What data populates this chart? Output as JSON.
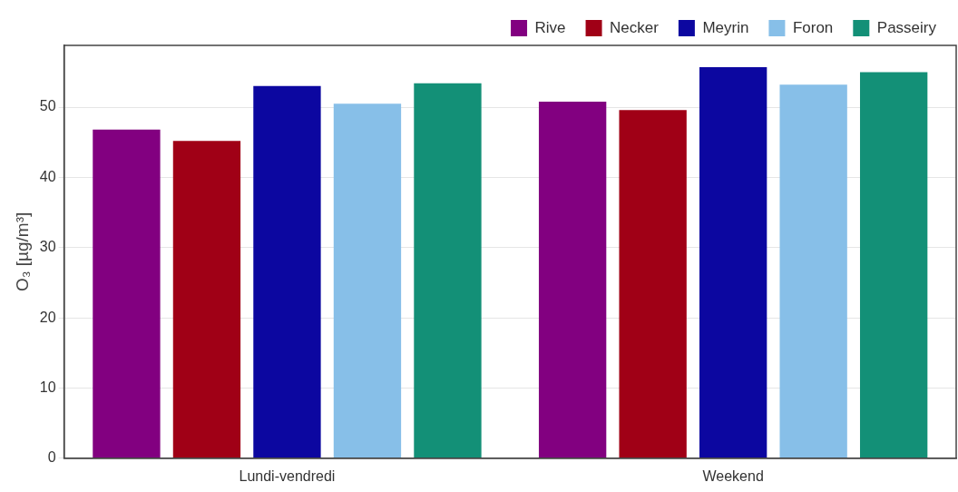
{
  "chart_data": {
    "type": "bar",
    "ylabel": "O₃ [µg/m³]",
    "categories": [
      "Lundi-vendredi",
      "Weekend"
    ],
    "series": [
      {
        "name": "Rive",
        "color": "#820080",
        "values": [
          46.8,
          50.8
        ]
      },
      {
        "name": "Necker",
        "color": "#a00016",
        "values": [
          45.2,
          49.6
        ]
      },
      {
        "name": "Meyrin",
        "color": "#0c07a0",
        "values": [
          53.0,
          55.7
        ]
      },
      {
        "name": "Foron",
        "color": "#87bfe8",
        "values": [
          50.5,
          53.2
        ]
      },
      {
        "name": "Passeiry",
        "color": "#139077",
        "values": [
          53.4,
          55.0
        ]
      }
    ],
    "ylim": [
      0,
      58.8
    ],
    "yticks": [
      0,
      10,
      20,
      30,
      40,
      50
    ],
    "grid": "y",
    "legend": "top right"
  }
}
